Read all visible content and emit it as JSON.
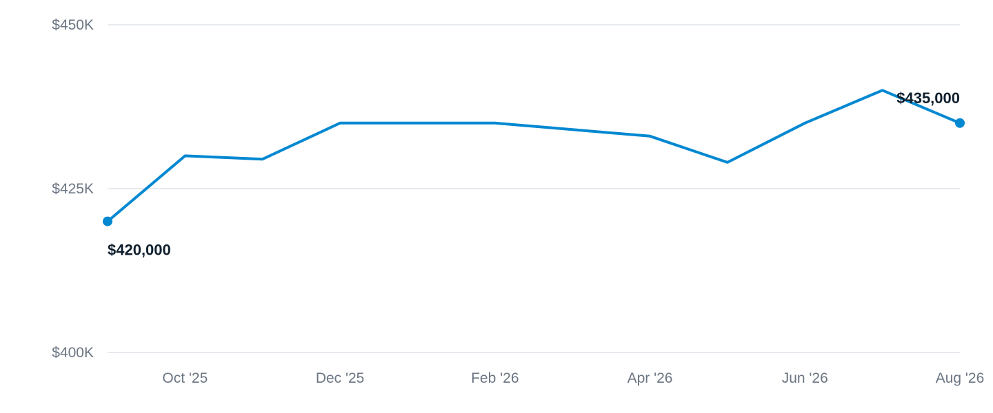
{
  "chart_data": {
    "type": "line",
    "title": "",
    "xlabel": "",
    "ylabel": "",
    "x": [
      "2025-09",
      "2025-10",
      "2025-11",
      "2025-12",
      "2026-01",
      "2026-02",
      "2026-03",
      "2026-04",
      "2026-05",
      "2026-06",
      "2026-07",
      "2026-08"
    ],
    "series": [
      {
        "values": [
          420000,
          430000,
          429500,
          435000,
          435000,
          435000,
          434000,
          433000,
          429000,
          435000,
          440000,
          435000
        ],
        "color": "#0288d1"
      }
    ],
    "ylim": [
      400000,
      450000
    ],
    "y_ticks": [
      {
        "value": 450000,
        "label": "$450K"
      },
      {
        "value": 425000,
        "label": "$425K"
      },
      {
        "value": 400000,
        "label": "$400K"
      }
    ],
    "x_ticks": [
      {
        "x": "2025-10",
        "label": "Oct '25"
      },
      {
        "x": "2025-12",
        "label": "Dec '25"
      },
      {
        "x": "2026-02",
        "label": "Feb '26"
      },
      {
        "x": "2026-04",
        "label": "Apr '26"
      },
      {
        "x": "2026-06",
        "label": "Jun '26"
      },
      {
        "x": "2026-08",
        "label": "Aug '26"
      }
    ],
    "annotations": [
      {
        "x": "2025-09",
        "label": "$420,000",
        "placement": "below"
      },
      {
        "x": "2026-08",
        "label": "$435,000",
        "placement": "above"
      }
    ],
    "grid": true,
    "legend": "none",
    "colors": {
      "line": "#0288d1",
      "grid": "#dfe3ea",
      "tick_text": "#6b7683",
      "label_text": "#0f1f2e"
    }
  }
}
